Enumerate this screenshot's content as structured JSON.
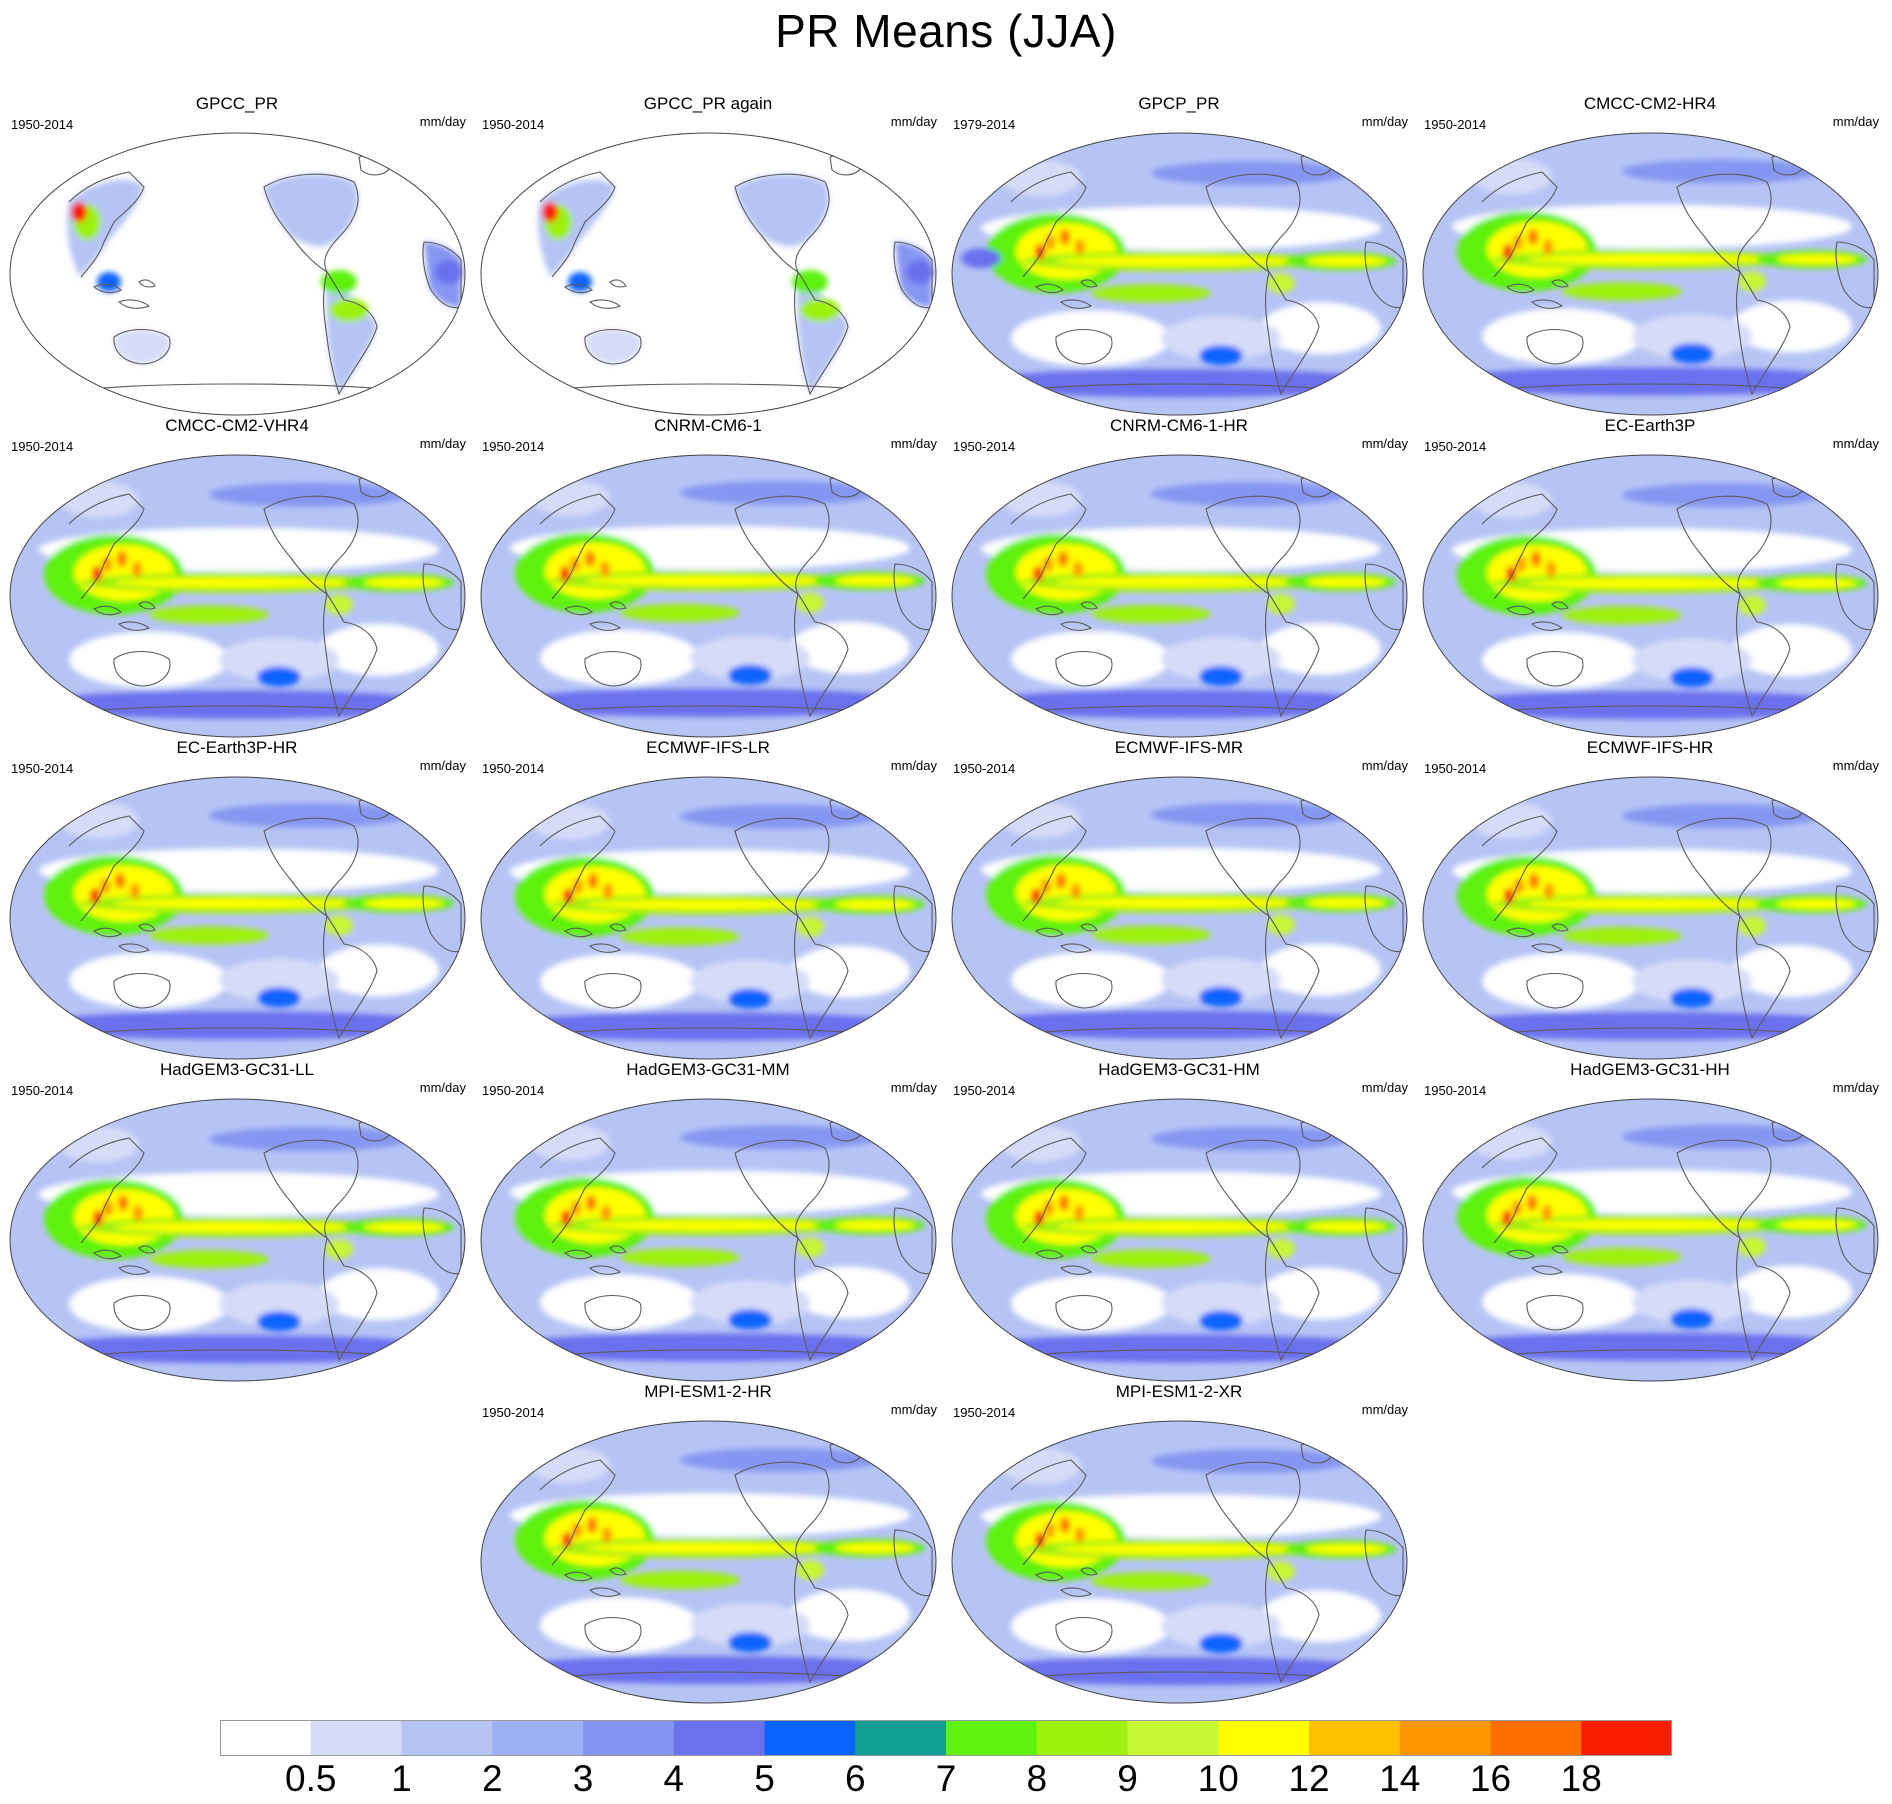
{
  "title": "PR Means (JJA)",
  "panels": [
    {
      "name": "GPCC_PR",
      "period": "1950-2014",
      "units": "mm/day",
      "field_style": "land-only"
    },
    {
      "name": "GPCC_PR again",
      "period": "1950-2014",
      "units": "mm/day",
      "field_style": "land-only"
    },
    {
      "name": "GPCP_PR",
      "period": "1979-2014",
      "units": "mm/day",
      "field_style": "observed-global"
    },
    {
      "name": "CMCC-CM2-HR4",
      "period": "1950-2014",
      "units": "mm/day",
      "field_style": "model"
    },
    {
      "name": "CMCC-CM2-VHR4",
      "period": "1950-2014",
      "units": "mm/day",
      "field_style": "model"
    },
    {
      "name": "CNRM-CM6-1",
      "period": "1950-2014",
      "units": "mm/day",
      "field_style": "model"
    },
    {
      "name": "CNRM-CM6-1-HR",
      "period": "1950-2014",
      "units": "mm/day",
      "field_style": "model"
    },
    {
      "name": "EC-Earth3P",
      "period": "1950-2014",
      "units": "mm/day",
      "field_style": "model"
    },
    {
      "name": "EC-Earth3P-HR",
      "period": "1950-2014",
      "units": "mm/day",
      "field_style": "model"
    },
    {
      "name": "ECMWF-IFS-LR",
      "period": "1950-2014",
      "units": "mm/day",
      "field_style": "model"
    },
    {
      "name": "ECMWF-IFS-MR",
      "period": "1950-2014",
      "units": "mm/day",
      "field_style": "model"
    },
    {
      "name": "ECMWF-IFS-HR",
      "period": "1950-2014",
      "units": "mm/day",
      "field_style": "model"
    },
    {
      "name": "HadGEM3-GC31-LL",
      "period": "1950-2014",
      "units": "mm/day",
      "field_style": "model"
    },
    {
      "name": "HadGEM3-GC31-MM",
      "period": "1950-2014",
      "units": "mm/day",
      "field_style": "model"
    },
    {
      "name": "HadGEM3-GC31-HM",
      "period": "1950-2014",
      "units": "mm/day",
      "field_style": "model"
    },
    {
      "name": "HadGEM3-GC31-HH",
      "period": "1950-2014",
      "units": "mm/day",
      "field_style": "model"
    },
    {
      "name": "MPI-ESM1-2-HR",
      "period": "1950-2014",
      "units": "mm/day",
      "field_style": "model"
    },
    {
      "name": "MPI-ESM1-2-XR",
      "period": "1950-2014",
      "units": "mm/day",
      "field_style": "model"
    }
  ],
  "colorbar": {
    "levels": [
      "0.5",
      "1",
      "2",
      "3",
      "4",
      "5",
      "6",
      "7",
      "8",
      "9",
      "10",
      "12",
      "14",
      "16",
      "18"
    ],
    "colors": [
      "#ffffff",
      "#d6dcf8",
      "#b6c4f5",
      "#9eb0f4",
      "#8596f2",
      "#6a70ee",
      "#0a64ff",
      "#119e93",
      "#5ef20d",
      "#9ef00f",
      "#c6f634",
      "#ffff00",
      "#ffc000",
      "#ff9600",
      "#ff6e00",
      "#fa1e00"
    ]
  }
}
